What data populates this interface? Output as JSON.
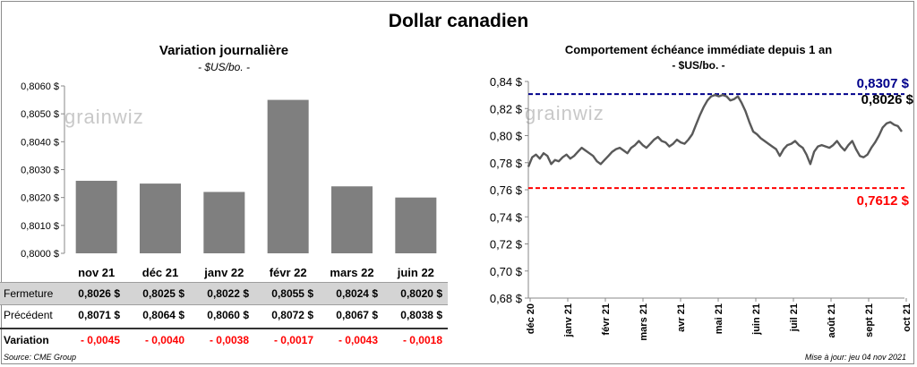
{
  "title": "Dollar canadien",
  "footer": {
    "source": "Source: CME Group",
    "updated": "Mise à jour: jeu 04 nov 2021"
  },
  "logo_text": "grainwiz",
  "chart_data": [
    {
      "type": "bar",
      "title": "Variation  journalière",
      "subtitle": "- $US/bo. -",
      "categories": [
        "nov 21",
        "déc 21",
        "janv 22",
        "févr 22",
        "mars 22",
        "juin 22"
      ],
      "values": [
        0.8026,
        0.8025,
        0.8022,
        0.8055,
        0.8024,
        0.802
      ],
      "ylim": [
        0.8,
        0.806
      ],
      "yticks": [
        "0,8000 $",
        "0,8010 $",
        "0,8020 $",
        "0,8030 $",
        "0,8040 $",
        "0,8050 $",
        "0,8060 $"
      ],
      "bar_color": "#7f7f7f",
      "table": {
        "rows": [
          {
            "label": "Fermeture",
            "cells": [
              "0,8026  $",
              "0,8025  $",
              "0,8022  $",
              "0,8055  $",
              "0,8024  $",
              "0,8020  $"
            ]
          },
          {
            "label": "Précédent",
            "cells": [
              "0,8071  $",
              "0,8064  $",
              "0,8060  $",
              "0,8072  $",
              "0,8067  $",
              "0,8038  $"
            ]
          },
          {
            "label": "Variation",
            "cells": [
              "- 0,0045",
              "- 0,0040",
              "- 0,0038",
              "- 0,0017",
              "- 0,0043",
              "- 0,0018"
            ]
          }
        ]
      }
    },
    {
      "type": "line",
      "title": "Comportement échéance immédiate depuis 1 an",
      "subtitle": "- $US/bo. -",
      "ylim": [
        0.68,
        0.84
      ],
      "yticks": [
        "0,68 $",
        "0,70 $",
        "0,72 $",
        "0,74 $",
        "0,76 $",
        "0,78 $",
        "0,80 $",
        "0,82 $",
        "0,84 $"
      ],
      "xticks": [
        "déc 20",
        "janv 21",
        "févr 21",
        "mars 21",
        "avr 21",
        "mai 21",
        "juin 21",
        "juil 21",
        "août 21",
        "sept 21",
        "oct 21"
      ],
      "line_color": "#595959",
      "reference_lines": [
        {
          "label": "0,8307  $",
          "value": 0.8307,
          "color": "#00008b"
        },
        {
          "label": "0,7612  $",
          "value": 0.7612,
          "color": "#ff0000"
        }
      ],
      "last_label": "0,8026 $",
      "series": [
        {
          "values": [
            0.777,
            0.784,
            0.786,
            0.783,
            0.787,
            0.785,
            0.779,
            0.782,
            0.781,
            0.784,
            0.786,
            0.783,
            0.785,
            0.788,
            0.791,
            0.789,
            0.787,
            0.785,
            0.781,
            0.779,
            0.782,
            0.785,
            0.788,
            0.79,
            0.791,
            0.789,
            0.787,
            0.791,
            0.793,
            0.796,
            0.793,
            0.791,
            0.794,
            0.797,
            0.799,
            0.796,
            0.795,
            0.792,
            0.794,
            0.797,
            0.795,
            0.794,
            0.797,
            0.801,
            0.808,
            0.815,
            0.821,
            0.826,
            0.829,
            0.83,
            0.829,
            0.83,
            0.829,
            0.826,
            0.827,
            0.829,
            0.824,
            0.818,
            0.81,
            0.803,
            0.801,
            0.798,
            0.796,
            0.794,
            0.792,
            0.79,
            0.785,
            0.79,
            0.793,
            0.794,
            0.796,
            0.793,
            0.791,
            0.786,
            0.779,
            0.788,
            0.792,
            0.793,
            0.792,
            0.791,
            0.793,
            0.796,
            0.792,
            0.789,
            0.793,
            0.796,
            0.79,
            0.785,
            0.784,
            0.786,
            0.791,
            0.795,
            0.8,
            0.806,
            0.809,
            0.81,
            0.808,
            0.807,
            0.803
          ]
        }
      ]
    }
  ]
}
